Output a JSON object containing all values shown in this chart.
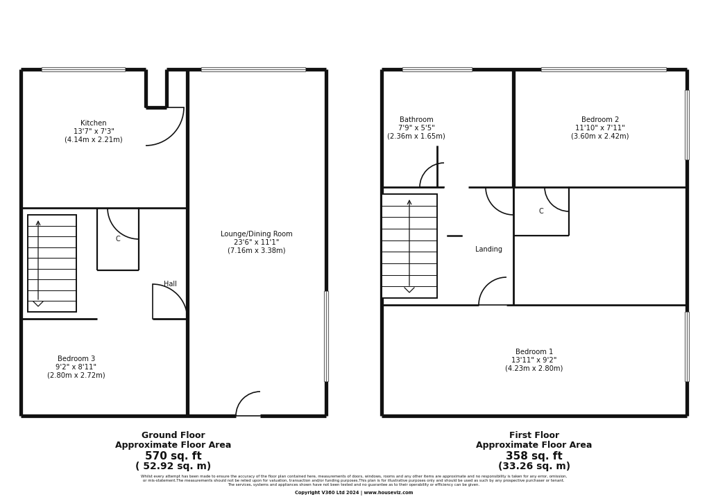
{
  "bg_color": "#ffffff",
  "ground_floor_label": "Ground Floor",
  "ground_floor_sub": "Approximate Floor Area",
  "ground_floor_area1": "570 sq. ft",
  "ground_floor_area2": "( 52.92 sq. m)",
  "first_floor_label": "First Floor",
  "first_floor_sub": "Approximate Floor Area",
  "first_floor_area1": "358 sq. ft",
  "first_floor_area2": "(33.26 sq. m)",
  "disclaimer": "Whilst every attempt has been made to ensure the accuracy of the floor plan contained here, measurements of doors, windows, rooms and any other items are approximate and no responsibility is taken for any error, omission,\nor mis-statement.The measurements should not be relied upon for valuation, transaction and/or funding purposes.This plan is for illustrative purposes only and should be used as such by any prospective purchaser or tenant.\nThe services, systems and appliances shown have not been tested and no guarantee as to their operability or efficiency can be given.",
  "copyright": "Copyright V360 Ltd 2024 | www.houseviz.com",
  "kitchen_label": "Kitchen\n13'7\" x 7'3\"\n(4.14m x 2.21m)",
  "lounge_label": "Lounge/Dining Room\n23'6\" x 11'1\"\n(7.16m x 3.38m)",
  "hall_label": "Hall",
  "bed3_label": "Bedroom 3\n9'2\" x 8'11\"\n(2.80m x 2.72m)",
  "bathroom_label": "Bathroom\n7'9\" x 5'5\"\n(2.36m x 1.65m)",
  "bed2_label": "Bedroom 2\n11'10\" x 7'11\"\n(3.60m x 2.42m)",
  "landing_label": "Landing",
  "bed1_label": "Bedroom 1\n13'11\" x 9'2\"\n(4.23m x 2.80m)",
  "closet_label": "C"
}
